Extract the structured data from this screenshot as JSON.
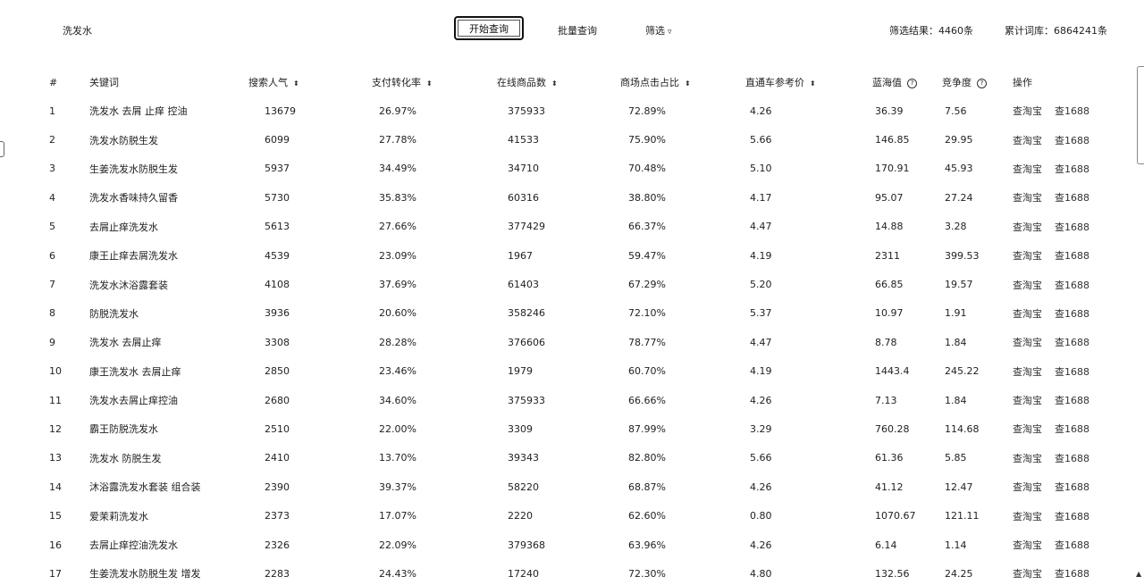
{
  "search": {
    "query": "洗发水"
  },
  "toolbar": {
    "primary_label": "开始查询",
    "batch_label": "批量查询",
    "filter_label": "筛选",
    "filter_caret": "▿"
  },
  "stats": {
    "results_label": "筛选结果：4460条",
    "total_label": "累计词库：6864241条"
  },
  "icons": {
    "sort": "⬍",
    "info": "?"
  },
  "table": {
    "headers": {
      "index": "#",
      "keyword": "关键词",
      "search_volume": "搜索人气",
      "conversion": "支付转化率",
      "online_count": "在线商品数",
      "click_ratio": "商场点击占比",
      "ad_price": "直通车参考价",
      "blue_ocean": "蓝海值",
      "competition": "竞争度",
      "action": "操作"
    },
    "rows": [
      {
        "index": "1",
        "keyword": "洗发水 去屑 止痒 控油",
        "search_volume": "13679",
        "conversion": "26.97%",
        "online_count": "375933",
        "click_ratio": "72.89%",
        "ad_price": "4.26",
        "blue_ocean": "36.39",
        "competition": "7.56",
        "op_taobao": "查淘宝",
        "op_1688": "查1688"
      },
      {
        "index": "2",
        "keyword": "洗发水防脱生发",
        "search_volume": "6099",
        "conversion": "27.78%",
        "online_count": "41533",
        "click_ratio": "75.90%",
        "ad_price": "5.66",
        "blue_ocean": "146.85",
        "competition": "29.95",
        "op_taobao": "查淘宝",
        "op_1688": "查1688"
      },
      {
        "index": "3",
        "keyword": "生姜洗发水防脱生发",
        "search_volume": "5937",
        "conversion": "34.49%",
        "online_count": "34710",
        "click_ratio": "70.48%",
        "ad_price": "5.10",
        "blue_ocean": "170.91",
        "competition": "45.93",
        "op_taobao": "查淘宝",
        "op_1688": "查1688"
      },
      {
        "index": "4",
        "keyword": "洗发水香味持久留香",
        "search_volume": "5730",
        "conversion": "35.83%",
        "online_count": "60316",
        "click_ratio": "38.80%",
        "ad_price": "4.17",
        "blue_ocean": "95.07",
        "competition": "27.24",
        "op_taobao": "查淘宝",
        "op_1688": "查1688"
      },
      {
        "index": "5",
        "keyword": "去屑止痒洗发水",
        "search_volume": "5613",
        "conversion": "27.66%",
        "online_count": "377429",
        "click_ratio": "66.37%",
        "ad_price": "4.47",
        "blue_ocean": "14.88",
        "competition": "3.28",
        "op_taobao": "查淘宝",
        "op_1688": "查1688"
      },
      {
        "index": "6",
        "keyword": "康王止痒去屑洗发水",
        "search_volume": "4539",
        "conversion": "23.09%",
        "online_count": "1967",
        "click_ratio": "59.47%",
        "ad_price": "4.19",
        "blue_ocean": "2311",
        "competition": "399.53",
        "op_taobao": "查淘宝",
        "op_1688": "查1688"
      },
      {
        "index": "7",
        "keyword": "洗发水沐浴露套装",
        "search_volume": "4108",
        "conversion": "37.69%",
        "online_count": "61403",
        "click_ratio": "67.29%",
        "ad_price": "5.20",
        "blue_ocean": "66.85",
        "competition": "19.57",
        "op_taobao": "查淘宝",
        "op_1688": "查1688"
      },
      {
        "index": "8",
        "keyword": "防脱洗发水",
        "search_volume": "3936",
        "conversion": "20.60%",
        "online_count": "358246",
        "click_ratio": "72.10%",
        "ad_price": "5.37",
        "blue_ocean": "10.97",
        "competition": "1.91",
        "op_taobao": "查淘宝",
        "op_1688": "查1688"
      },
      {
        "index": "9",
        "keyword": "洗发水 去屑止痒",
        "search_volume": "3308",
        "conversion": "28.28%",
        "online_count": "376606",
        "click_ratio": "78.77%",
        "ad_price": "4.47",
        "blue_ocean": "8.78",
        "competition": "1.84",
        "op_taobao": "查淘宝",
        "op_1688": "查1688"
      },
      {
        "index": "10",
        "keyword": "康王洗发水 去屑止痒",
        "search_volume": "2850",
        "conversion": "23.46%",
        "online_count": "1979",
        "click_ratio": "60.70%",
        "ad_price": "4.19",
        "blue_ocean": "1443.4",
        "competition": "245.22",
        "op_taobao": "查淘宝",
        "op_1688": "查1688"
      },
      {
        "index": "11",
        "keyword": "洗发水去屑止痒控油",
        "search_volume": "2680",
        "conversion": "34.60%",
        "online_count": "375933",
        "click_ratio": "66.66%",
        "ad_price": "4.26",
        "blue_ocean": "7.13",
        "competition": "1.84",
        "op_taobao": "查淘宝",
        "op_1688": "查1688"
      },
      {
        "index": "12",
        "keyword": "霸王防脱洗发水",
        "search_volume": "2510",
        "conversion": "22.00%",
        "online_count": "3309",
        "click_ratio": "87.99%",
        "ad_price": "3.29",
        "blue_ocean": "760.28",
        "competition": "114.68",
        "op_taobao": "查淘宝",
        "op_1688": "查1688"
      },
      {
        "index": "13",
        "keyword": "洗发水 防脱生发",
        "search_volume": "2410",
        "conversion": "13.70%",
        "online_count": "39343",
        "click_ratio": "82.80%",
        "ad_price": "5.66",
        "blue_ocean": "61.36",
        "competition": "5.85",
        "op_taobao": "查淘宝",
        "op_1688": "查1688"
      },
      {
        "index": "14",
        "keyword": "沐浴露洗发水套装 组合装",
        "search_volume": "2390",
        "conversion": "39.37%",
        "online_count": "58220",
        "click_ratio": "68.87%",
        "ad_price": "4.26",
        "blue_ocean": "41.12",
        "competition": "12.47",
        "op_taobao": "查淘宝",
        "op_1688": "查1688"
      },
      {
        "index": "15",
        "keyword": "爱茉莉洗发水",
        "search_volume": "2373",
        "conversion": "17.07%",
        "online_count": "2220",
        "click_ratio": "62.60%",
        "ad_price": "0.80",
        "blue_ocean": "1070.67",
        "competition": "121.11",
        "op_taobao": "查淘宝",
        "op_1688": "查1688"
      },
      {
        "index": "16",
        "keyword": "去屑止痒控油洗发水",
        "search_volume": "2326",
        "conversion": "22.09%",
        "online_count": "379368",
        "click_ratio": "63.96%",
        "ad_price": "4.26",
        "blue_ocean": "6.14",
        "competition": "1.14",
        "op_taobao": "查淘宝",
        "op_1688": "查1688"
      },
      {
        "index": "17",
        "keyword": "生姜洗发水防脱生发 增发",
        "search_volume": "2283",
        "conversion": "24.43%",
        "online_count": "17240",
        "click_ratio": "72.30%",
        "ad_price": "4.80",
        "blue_ocean": "132.56",
        "competition": "24.25",
        "op_taobao": "查淘宝",
        "op_1688": "查1688"
      }
    ]
  }
}
